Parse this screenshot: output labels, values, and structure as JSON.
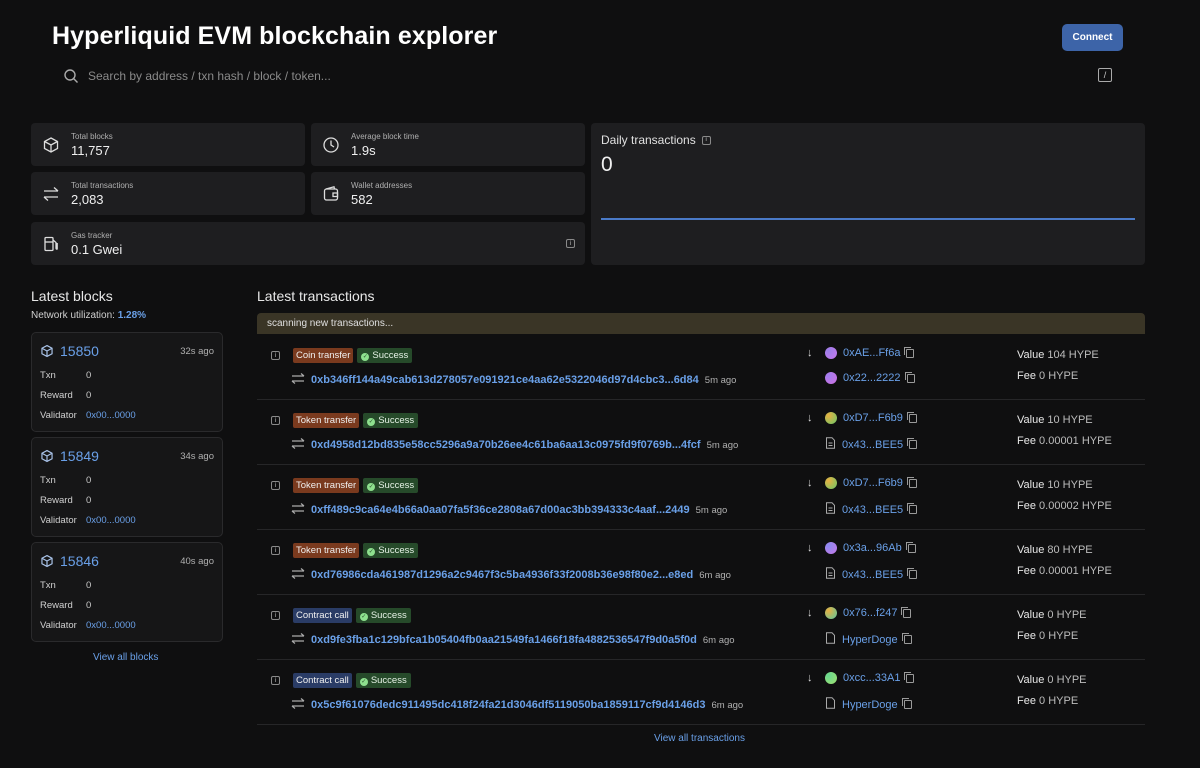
{
  "header": {
    "title": "Hyperliquid EVM blockchain explorer",
    "connect_label": "Connect"
  },
  "search": {
    "placeholder": "Search by address / txn hash / block / token...",
    "shortcut": "/"
  },
  "stats": {
    "total_blocks": {
      "label": "Total blocks",
      "value": "11,757",
      "icon": "cube-icon"
    },
    "avg_block_time": {
      "label": "Average block time",
      "value": "1.9s",
      "icon": "clock-icon"
    },
    "total_transactions": {
      "label": "Total transactions",
      "value": "2,083",
      "icon": "arrows-exchange-icon"
    },
    "wallet_addresses": {
      "label": "Wallet addresses",
      "value": "582",
      "icon": "wallet-icon"
    },
    "gas_tracker": {
      "label": "Gas tracker",
      "value": "0.1 Gwei",
      "icon": "gas-pump-icon"
    }
  },
  "daily": {
    "title": "Daily transactions",
    "value": "0",
    "line_color": "#4a7ac7"
  },
  "latest_blocks": {
    "title": "Latest blocks",
    "network_label": "Network utilization: ",
    "network_value": "1.28%",
    "blocks": [
      {
        "number": "15850",
        "ago": "32s ago",
        "txn_label": "Txn",
        "txn": "0",
        "reward_label": "Reward",
        "reward": "0",
        "validator_label": "Validator",
        "validator": "0x00...0000"
      },
      {
        "number": "15849",
        "ago": "34s ago",
        "txn_label": "Txn",
        "txn": "0",
        "reward_label": "Reward",
        "reward": "0",
        "validator_label": "Validator",
        "validator": "0x00...0000"
      },
      {
        "number": "15846",
        "ago": "40s ago",
        "txn_label": "Txn",
        "txn": "0",
        "reward_label": "Reward",
        "reward": "0",
        "validator_label": "Validator",
        "validator": "0x00...0000"
      }
    ],
    "view_all": "View all blocks"
  },
  "latest_transactions": {
    "title": "Latest transactions",
    "scanning": "scanning new transactions...",
    "view_all": "View all transactions",
    "items": [
      {
        "type": "Coin transfer",
        "status": "Success",
        "hash": "0xb346ff144a49cab613d278057e091921ce4aa62e5322046d97d4cbc3...6d84",
        "ago": "5m ago",
        "from": "0xAE...Ff6a",
        "to": "0x22...2222",
        "value_label": "Value",
        "value": "104 HYPE",
        "fee_label": "Fee",
        "fee": "0 HYPE",
        "badge_color": "#7a3a1e"
      },
      {
        "type": "Token transfer",
        "status": "Success",
        "hash": "0xd4958d12bd835e58cc5296a9a70b26ee4c61ba6aa13c0975fd9f0769b...4fcf",
        "ago": "5m ago",
        "from": "0xD7...F6b9",
        "to": "0x43...BEE5",
        "value_label": "Value",
        "value": "10 HYPE",
        "fee_label": "Fee",
        "fee": "0.00001 HYPE",
        "badge_color": "#7a3a1e"
      },
      {
        "type": "Token transfer",
        "status": "Success",
        "hash": "0xff489c9ca64e4b66a0aa07fa5f36ce2808a67d00ac3bb394333c4aaf...2449",
        "ago": "5m ago",
        "from": "0xD7...F6b9",
        "to": "0x43...BEE5",
        "value_label": "Value",
        "value": "10 HYPE",
        "fee_label": "Fee",
        "fee": "0.00002 HYPE",
        "badge_color": "#7a3a1e"
      },
      {
        "type": "Token transfer",
        "status": "Success",
        "hash": "0xd76986cda461987d1296a2c9467f3c5ba4936f33f2008b36e98f80e2...e8ed",
        "ago": "6m ago",
        "from": "0x3a...96Ab",
        "to": "0x43...BEE5",
        "value_label": "Value",
        "value": "80 HYPE",
        "fee_label": "Fee",
        "fee": "0.00001 HYPE",
        "badge_color": "#7a3a1e"
      },
      {
        "type": "Contract call",
        "status": "Success",
        "hash": "0xd9fe3fba1c129bfca1b05404fb0aa21549fa1466f18fa4882536547f9d0a5f0d",
        "ago": "6m ago",
        "from": "0x76...f247",
        "to": "HyperDoge",
        "value_label": "Value",
        "value": "0 HYPE",
        "fee_label": "Fee",
        "fee": "0 HYPE",
        "badge_color": "#2a3c66"
      },
      {
        "type": "Contract call",
        "status": "Success",
        "hash": "0x5c9f61076dedc911495dc418f24fa21d3046df5119050ba1859117cf9d4146d3",
        "ago": "6m ago",
        "from": "0xcc...33A1",
        "to": "HyperDoge",
        "value_label": "Value",
        "value": "0 HYPE",
        "fee_label": "Fee",
        "fee": "0 HYPE",
        "badge_color": "#2a3c66"
      }
    ]
  }
}
